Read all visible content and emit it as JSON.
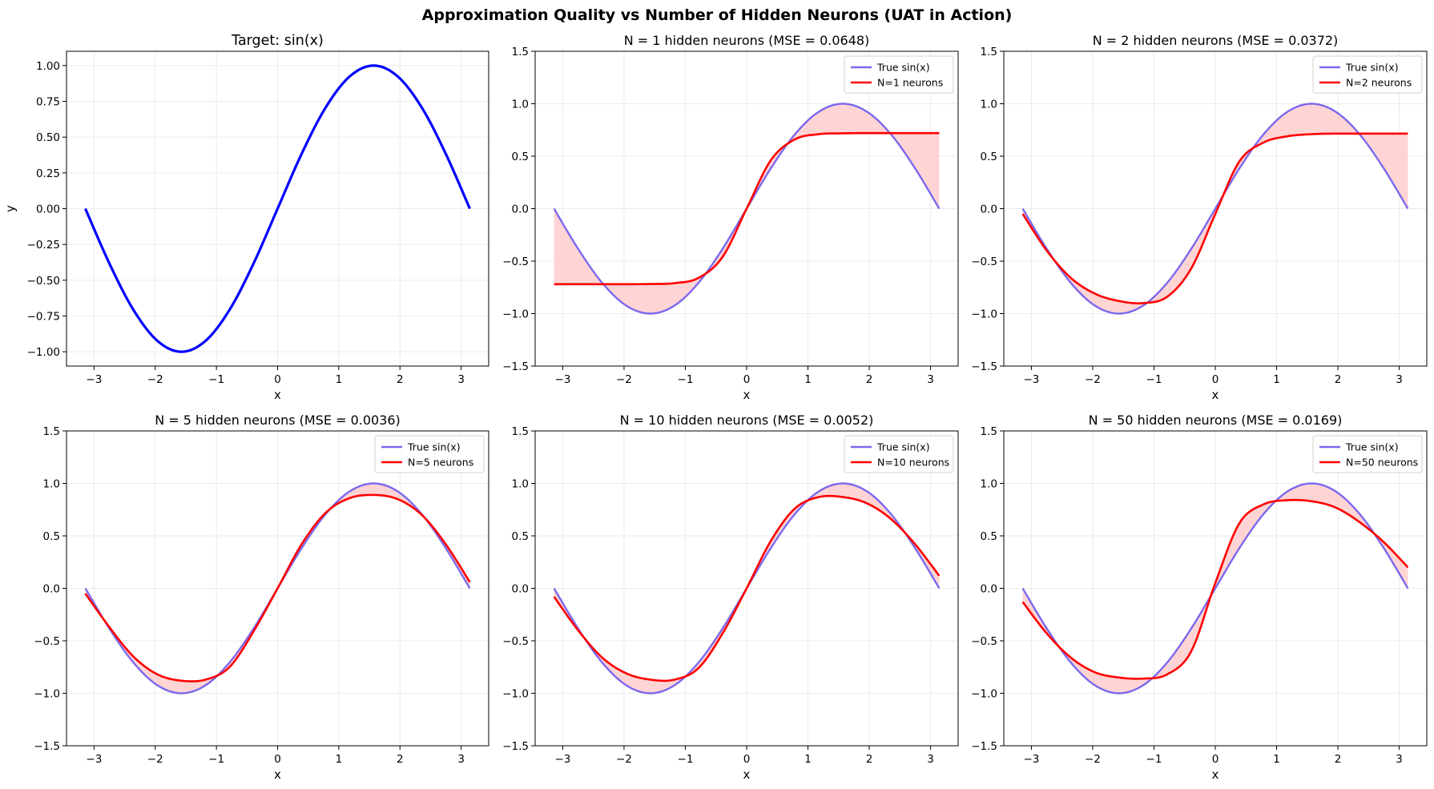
{
  "figure": {
    "title": "Approximation Quality vs Number of Hidden Neurons (UAT in Action)"
  },
  "colors": {
    "target_line": "#0000ff",
    "true_line": "#7b68ee",
    "approx_line": "#ff0000",
    "fill": "#ffcccc",
    "grid": "#ebebeb",
    "axes": "#000000"
  },
  "chart_data": [
    {
      "type": "line",
      "title": "Target: sin(x)",
      "xlabel": "x",
      "ylabel": "y",
      "xlim": [
        -3.45,
        3.45
      ],
      "ylim": [
        -1.1,
        1.1
      ],
      "xticks": [
        -3,
        -2,
        -1,
        0,
        1,
        2,
        3
      ],
      "yticks": [
        -1.0,
        -0.75,
        -0.5,
        -0.25,
        0.0,
        0.25,
        0.5,
        0.75,
        1.0
      ],
      "ytick_labels": [
        "−1.00",
        "−0.75",
        "−0.50",
        "−0.25",
        "0.00",
        "0.25",
        "0.50",
        "0.75",
        "1.00"
      ],
      "grid": true,
      "legend": null,
      "x": [
        -3.1416,
        -2.7489,
        -2.3562,
        -1.9635,
        -1.5708,
        -1.1781,
        -0.7854,
        -0.3927,
        0.0,
        0.3927,
        0.7854,
        1.1781,
        1.5708,
        1.9635,
        2.3562,
        2.7489,
        3.1416
      ],
      "series": [
        {
          "name": "",
          "values": [
            0.0,
            -0.383,
            -0.707,
            -0.924,
            -1.0,
            -0.924,
            -0.707,
            -0.383,
            0.0,
            0.383,
            0.707,
            0.924,
            1.0,
            0.924,
            0.707,
            0.383,
            0.0
          ]
        }
      ]
    },
    {
      "type": "line",
      "title": "N = 1 hidden neurons (MSE = 0.0648)",
      "xlabel": "x",
      "ylabel": "",
      "xlim": [
        -3.45,
        3.45
      ],
      "ylim": [
        -1.5,
        1.5
      ],
      "xticks": [
        -3,
        -2,
        -1,
        0,
        1,
        2,
        3
      ],
      "yticks": [
        -1.5,
        -1.0,
        -0.5,
        0.0,
        0.5,
        1.0,
        1.5
      ],
      "ytick_labels": [
        "−1.5",
        "−1.0",
        "−0.5",
        "0.0",
        "0.5",
        "1.0",
        "1.5"
      ],
      "grid": true,
      "legend": "top-right",
      "x": [
        -3.1416,
        -2.7489,
        -2.3562,
        -1.9635,
        -1.5708,
        -1.1781,
        -0.7854,
        -0.3927,
        0.0,
        0.3927,
        0.7854,
        1.1781,
        1.5708,
        1.9635,
        2.3562,
        2.7489,
        3.1416
      ],
      "series": [
        {
          "name": "True sin(x)",
          "values": [
            0.0,
            -0.383,
            -0.707,
            -0.924,
            -1.0,
            -0.924,
            -0.707,
            -0.383,
            0.0,
            0.383,
            0.707,
            0.924,
            1.0,
            0.924,
            0.707,
            0.383,
            0.0
          ]
        },
        {
          "name": "N=1 neurons",
          "values": [
            -0.72,
            -0.72,
            -0.72,
            -0.72,
            -0.718,
            -0.71,
            -0.66,
            -0.46,
            0.0,
            0.46,
            0.66,
            0.71,
            0.718,
            0.72,
            0.72,
            0.72,
            0.72
          ]
        }
      ]
    },
    {
      "type": "line",
      "title": "N = 2 hidden neurons (MSE = 0.0372)",
      "xlabel": "x",
      "ylabel": "",
      "xlim": [
        -3.45,
        3.45
      ],
      "ylim": [
        -1.5,
        1.5
      ],
      "xticks": [
        -3,
        -2,
        -1,
        0,
        1,
        2,
        3
      ],
      "yticks": [
        -1.5,
        -1.0,
        -0.5,
        0.0,
        0.5,
        1.0,
        1.5
      ],
      "ytick_labels": [
        "−1.5",
        "−1.0",
        "−0.5",
        "0.0",
        "0.5",
        "1.0",
        "1.5"
      ],
      "grid": true,
      "legend": "top-right",
      "x": [
        -3.1416,
        -2.7489,
        -2.3562,
        -1.9635,
        -1.5708,
        -1.1781,
        -0.7854,
        -0.3927,
        0.0,
        0.3927,
        0.7854,
        1.1781,
        1.5708,
        1.9635,
        2.3562,
        2.7489,
        3.1416
      ],
      "series": [
        {
          "name": "True sin(x)",
          "values": [
            0.0,
            -0.383,
            -0.707,
            -0.924,
            -1.0,
            -0.924,
            -0.707,
            -0.383,
            0.0,
            0.383,
            0.707,
            0.924,
            1.0,
            0.924,
            0.707,
            0.383,
            0.0
          ]
        },
        {
          "name": "N=2 neurons",
          "values": [
            -0.05,
            -0.4,
            -0.66,
            -0.81,
            -0.88,
            -0.9,
            -0.84,
            -0.57,
            -0.05,
            0.45,
            0.63,
            0.69,
            0.71,
            0.715,
            0.715,
            0.715,
            0.715
          ]
        }
      ]
    },
    {
      "type": "line",
      "title": "N = 5 hidden neurons (MSE = 0.0036)",
      "xlabel": "x",
      "ylabel": "",
      "xlim": [
        -3.45,
        3.45
      ],
      "ylim": [
        -1.5,
        1.5
      ],
      "xticks": [
        -3,
        -2,
        -1,
        0,
        1,
        2,
        3
      ],
      "yticks": [
        -1.5,
        -1.0,
        -0.5,
        0.0,
        0.5,
        1.0,
        1.5
      ],
      "ytick_labels": [
        "−1.5",
        "−1.0",
        "−0.5",
        "0.0",
        "0.5",
        "1.0",
        "1.5"
      ],
      "grid": true,
      "legend": "top-right",
      "x": [
        -3.1416,
        -2.7489,
        -2.3562,
        -1.9635,
        -1.5708,
        -1.1781,
        -0.7854,
        -0.3927,
        0.0,
        0.3927,
        0.7854,
        1.1781,
        1.5708,
        1.9635,
        2.3562,
        2.7489,
        3.1416
      ],
      "series": [
        {
          "name": "True sin(x)",
          "values": [
            0.0,
            -0.383,
            -0.707,
            -0.924,
            -1.0,
            -0.924,
            -0.707,
            -0.383,
            0.0,
            0.383,
            0.707,
            0.924,
            1.0,
            0.924,
            0.707,
            0.383,
            0.0
          ]
        },
        {
          "name": "N=5 neurons",
          "values": [
            -0.05,
            -0.37,
            -0.65,
            -0.82,
            -0.88,
            -0.87,
            -0.75,
            -0.41,
            0.0,
            0.42,
            0.72,
            0.86,
            0.89,
            0.85,
            0.7,
            0.42,
            0.06
          ]
        }
      ]
    },
    {
      "type": "line",
      "title": "N = 10 hidden neurons (MSE = 0.0052)",
      "xlabel": "x",
      "ylabel": "",
      "xlim": [
        -3.45,
        3.45
      ],
      "ylim": [
        -1.5,
        1.5
      ],
      "xticks": [
        -3,
        -2,
        -1,
        0,
        1,
        2,
        3
      ],
      "yticks": [
        -1.5,
        -1.0,
        -0.5,
        0.0,
        0.5,
        1.0,
        1.5
      ],
      "ytick_labels": [
        "−1.5",
        "−1.0",
        "−0.5",
        "0.0",
        "0.5",
        "1.0",
        "1.5"
      ],
      "grid": true,
      "legend": "top-right",
      "x": [
        -3.1416,
        -2.7489,
        -2.3562,
        -1.9635,
        -1.5708,
        -1.1781,
        -0.7854,
        -0.3927,
        0.0,
        0.3927,
        0.7854,
        1.1781,
        1.5708,
        1.9635,
        2.3562,
        2.7489,
        3.1416
      ],
      "series": [
        {
          "name": "True sin(x)",
          "values": [
            0.0,
            -0.383,
            -0.707,
            -0.924,
            -1.0,
            -0.924,
            -0.707,
            -0.383,
            0.0,
            0.383,
            0.707,
            0.924,
            1.0,
            0.924,
            0.707,
            0.383,
            0.0
          ]
        },
        {
          "name": "N=10 neurons",
          "values": [
            -0.08,
            -0.4,
            -0.66,
            -0.81,
            -0.87,
            -0.87,
            -0.76,
            -0.43,
            0.0,
            0.45,
            0.76,
            0.87,
            0.87,
            0.81,
            0.66,
            0.42,
            0.12
          ]
        }
      ]
    },
    {
      "type": "line",
      "title": "N = 50 hidden neurons (MSE = 0.0169)",
      "xlabel": "x",
      "ylabel": "",
      "xlim": [
        -3.45,
        3.45
      ],
      "ylim": [
        -1.5,
        1.5
      ],
      "xticks": [
        -3,
        -2,
        -1,
        0,
        1,
        2,
        3
      ],
      "yticks": [
        -1.5,
        -1.0,
        -0.5,
        0.0,
        0.5,
        1.0,
        1.5
      ],
      "ytick_labels": [
        "−1.5",
        "−1.0",
        "−0.5",
        "0.0",
        "0.5",
        "1.0",
        "1.5"
      ],
      "grid": true,
      "legend": "top-right",
      "x": [
        -3.1416,
        -2.7489,
        -2.3562,
        -1.9635,
        -1.5708,
        -1.1781,
        -0.7854,
        -0.3927,
        0.0,
        0.3927,
        0.7854,
        1.1781,
        1.5708,
        1.9635,
        2.3562,
        2.7489,
        3.1416
      ],
      "series": [
        {
          "name": "True sin(x)",
          "values": [
            0.0,
            -0.383,
            -0.707,
            -0.924,
            -1.0,
            -0.924,
            -0.707,
            -0.383,
            0.0,
            0.383,
            0.707,
            0.924,
            1.0,
            0.924,
            0.707,
            0.383,
            0.0
          ]
        },
        {
          "name": "N=50 neurons",
          "values": [
            -0.13,
            -0.43,
            -0.66,
            -0.8,
            -0.85,
            -0.86,
            -0.82,
            -0.6,
            0.05,
            0.62,
            0.8,
            0.84,
            0.83,
            0.77,
            0.63,
            0.44,
            0.2
          ]
        }
      ]
    }
  ]
}
